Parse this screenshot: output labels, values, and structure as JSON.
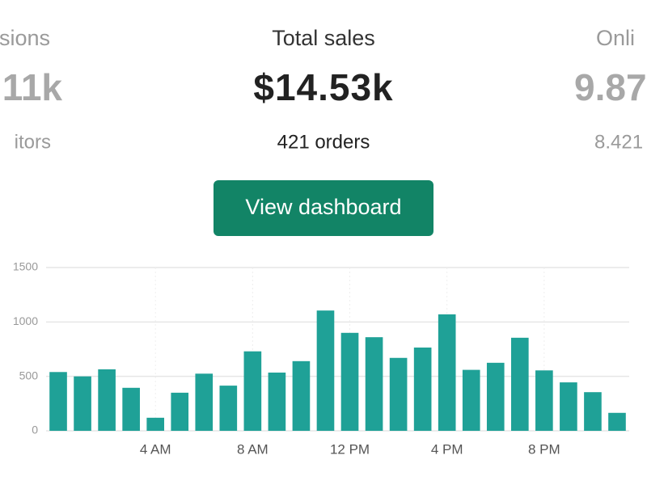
{
  "stats": [
    {
      "label": "sions",
      "value": "11k",
      "sub": "itors"
    },
    {
      "label": "Total sales",
      "value": "$14.53k",
      "sub": "421 orders"
    },
    {
      "label": "Onli",
      "value": "9.87",
      "sub": "8.421"
    }
  ],
  "button": {
    "label": "View dashboard"
  },
  "chart_data": {
    "type": "bar",
    "categories": [
      null,
      null,
      null,
      null,
      "4 AM",
      null,
      null,
      null,
      "8 AM",
      null,
      null,
      null,
      "12 PM",
      null,
      null,
      null,
      "4 PM",
      null,
      null,
      null,
      "8 PM",
      null,
      null,
      null
    ],
    "values": [
      540,
      500,
      565,
      395,
      120,
      350,
      525,
      415,
      730,
      535,
      640,
      1105,
      900,
      860,
      670,
      765,
      1070,
      560,
      625,
      855,
      555,
      445,
      355,
      165
    ],
    "color": "#1fa197",
    "ylim": [
      0,
      1500
    ],
    "yticks": [
      0,
      500,
      1000,
      1500
    ],
    "grid": true
  }
}
